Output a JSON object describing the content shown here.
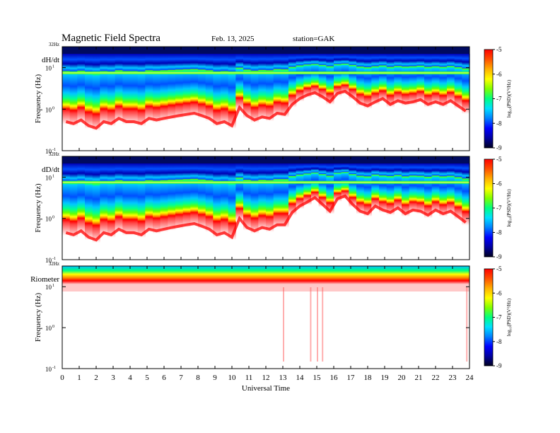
{
  "header": {
    "title": "Magnetic  Field  Spectra",
    "date": "Feb. 13, 2025",
    "station": "station=GAK"
  },
  "colors": {
    "spectrum_scale": [
      "#000030",
      "#0000b4",
      "#0050ff",
      "#00c8ff",
      "#00ff96",
      "#64ff00",
      "#ffff00",
      "#ff9600",
      "#ff0000",
      "#ffd0d0",
      "#ffffff"
    ]
  },
  "chart_data": [
    {
      "type": "heatmap",
      "name": "dH/dt",
      "panel_label": "dH/dt",
      "ylabel": "Frequency  (Hz)",
      "y_scale": "log",
      "top_label": "32Hz",
      "y_ticks": [
        "10",
        "10",
        "10"
      ],
      "y_tick_exps": [
        "1",
        "0",
        "-1"
      ],
      "ylim": [
        0.1,
        32
      ],
      "xlim": [
        0,
        24
      ],
      "colorbar": {
        "label": "log₁₀(PSD)(V²/Hz)",
        "ticks": [
          "-5",
          "-6",
          "-7",
          "-8",
          "-9"
        ],
        "range": [
          -9,
          -5
        ]
      },
      "red_edge_hz": [
        0.5,
        0.45,
        0.55,
        0.4,
        0.35,
        0.5,
        0.45,
        0.6,
        0.5,
        0.5,
        0.45,
        0.6,
        0.55,
        0.6,
        0.65,
        0.7,
        0.75,
        0.8,
        0.7,
        0.6,
        0.45,
        0.5,
        0.4,
        1.1,
        0.7,
        0.55,
        0.65,
        0.6,
        0.8,
        0.75,
        1.3,
        1.8,
        2.2,
        2.5,
        2.0,
        1.5,
        2.4,
        2.7,
        2.0,
        1.4,
        1.2,
        1.5,
        1.8,
        1.3,
        1.6,
        1.4,
        1.5,
        1.7,
        1.3,
        1.5,
        1.3,
        1.6,
        1.2,
        0.9
      ]
    },
    {
      "type": "heatmap",
      "name": "dD/dt",
      "panel_label": "dD/dt",
      "ylabel": "Frequency  (Hz)",
      "y_scale": "log",
      "top_label": "32Hz",
      "y_ticks": [
        "10",
        "10",
        "10"
      ],
      "y_tick_exps": [
        "1",
        "0",
        "-1"
      ],
      "ylim": [
        0.1,
        32
      ],
      "xlim": [
        0,
        24
      ],
      "colorbar": {
        "label": "log₁₀(PSD)(V²/Hz)",
        "ticks": [
          "-5",
          "-6",
          "-7",
          "-8",
          "-9"
        ],
        "range": [
          -9,
          -5
        ]
      },
      "red_edge_hz": [
        0.45,
        0.4,
        0.5,
        0.35,
        0.3,
        0.45,
        0.4,
        0.55,
        0.45,
        0.45,
        0.4,
        0.55,
        0.5,
        0.55,
        0.6,
        0.65,
        0.7,
        0.75,
        0.65,
        0.55,
        0.4,
        0.45,
        0.35,
        1.0,
        0.6,
        0.5,
        0.6,
        0.55,
        0.7,
        0.7,
        1.4,
        2.0,
        2.5,
        3.2,
        2.2,
        1.5,
        3.0,
        3.5,
        2.2,
        1.5,
        1.3,
        2.0,
        1.6,
        1.4,
        1.8,
        1.3,
        1.6,
        1.5,
        1.2,
        1.6,
        1.3,
        1.5,
        1.1,
        0.8
      ]
    },
    {
      "type": "heatmap",
      "name": "Riometer",
      "panel_label": "Riometer",
      "ylabel": "Frequency  (Hz)",
      "y_scale": "log",
      "top_label": "32Hz",
      "y_ticks": [
        "10",
        "10",
        "10"
      ],
      "y_tick_exps": [
        "1",
        "0",
        "-1"
      ],
      "ylim": [
        0.1,
        32
      ],
      "xlim": [
        0,
        24
      ],
      "colorbar": {
        "label": "log₁₀(PSD)(V²/Hz)",
        "ticks": [
          "-5",
          "-6",
          "-7",
          "-8",
          "-9"
        ],
        "range": [
          -9,
          -5
        ]
      },
      "red_edge_hz": [
        12,
        12,
        12,
        12,
        12,
        12,
        12,
        12,
        12,
        12,
        12,
        12,
        12,
        12,
        12,
        12,
        12,
        12,
        12,
        12,
        12,
        12,
        12,
        12,
        12,
        12,
        12,
        12,
        12,
        12,
        12,
        12,
        12,
        12,
        12,
        12,
        12,
        12,
        12,
        12,
        12,
        12,
        12,
        12,
        12,
        12,
        12,
        12,
        12,
        12,
        12,
        12,
        12,
        12
      ]
    }
  ],
  "x_axis": {
    "label": "Universal  Time",
    "ticks": [
      "0",
      "1",
      "2",
      "3",
      "4",
      "5",
      "6",
      "7",
      "8",
      "9",
      "10",
      "11",
      "12",
      "13",
      "14",
      "15",
      "16",
      "17",
      "18",
      "19",
      "20",
      "21",
      "22",
      "23",
      "24"
    ]
  }
}
